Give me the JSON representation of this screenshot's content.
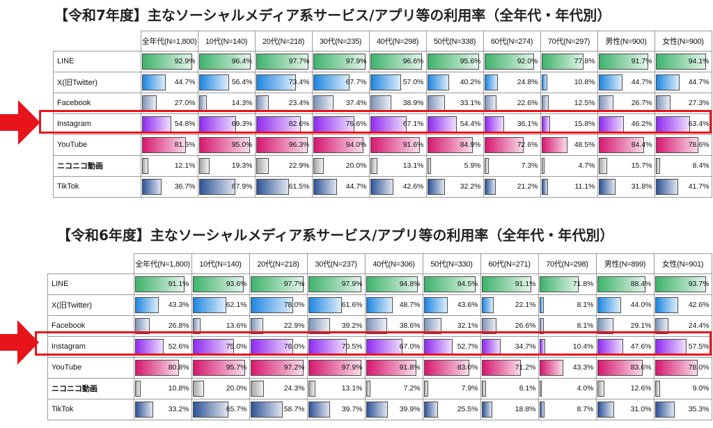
{
  "chart_data": [
    {
      "type": "table",
      "title": "【令和7年度】主なソーシャルメディア系サービス/アプリ等の利用率（全年代・年代別）",
      "columns": [
        "全年代(N=1,800)",
        "10代(N=140)",
        "20代(N=218)",
        "30代(N=235)",
        "40代(N=298)",
        "50代(N=338)",
        "60代(N=274)",
        "70代(N=297)",
        "男性(N=900)",
        "女性(N=900)"
      ],
      "rows": [
        {
          "name": "LINE",
          "color": "#3fb36b",
          "values": [
            92.9,
            96.4,
            97.7,
            97.9,
            96.6,
            95.6,
            92.0,
            77.8,
            91.7,
            94.1
          ]
        },
        {
          "name": "X(旧Twitter)",
          "color": "#1f86e0",
          "values": [
            44.7,
            56.4,
            73.4,
            67.7,
            57.0,
            40.2,
            24.8,
            10.8,
            44.7,
            44.7
          ]
        },
        {
          "name": "Facebook",
          "color": "#7e94b8",
          "values": [
            27.0,
            14.3,
            23.4,
            37.4,
            38.9,
            33.1,
            22.6,
            12.5,
            26.7,
            27.3
          ]
        },
        {
          "name": "Instagram",
          "color": "#8f2cf0",
          "values": [
            54.8,
            69.3,
            82.6,
            76.6,
            67.1,
            54.4,
            36.1,
            15.8,
            46.2,
            63.4
          ]
        },
        {
          "name": "YouTube",
          "color": "#d6186f",
          "values": [
            81.5,
            95.0,
            96.3,
            94.0,
            91.6,
            84.9,
            72.6,
            48.5,
            84.4,
            78.6
          ]
        },
        {
          "name": "ニコニコ動画",
          "color": "#a5a5a5",
          "values": [
            12.1,
            19.3,
            22.9,
            20.0,
            13.1,
            5.9,
            7.3,
            4.7,
            15.7,
            8.4
          ]
        },
        {
          "name": "TikTok",
          "color": "#2f5497",
          "values": [
            36.7,
            67.9,
            61.5,
            44.7,
            42.6,
            32.2,
            21.2,
            11.1,
            31.8,
            41.7
          ]
        }
      ],
      "value_labels": [
        [
          "92.9%",
          "96.4%",
          "97.7%",
          "97.9%",
          "96.6%",
          "95.6%",
          "92.0%",
          "77.8%",
          "91.7%",
          "94.1%"
        ],
        [
          "44.7%",
          "56.4%",
          "73.4%",
          "67.7%",
          "57.0%",
          "40.2%",
          "24.8%",
          "10.8%",
          "44.7%",
          "44.7%"
        ],
        [
          "27.0%",
          "14.3%",
          "23.4%",
          "37.4%",
          "38.9%",
          "33.1%",
          "22.6%",
          "12.5%",
          "26.7%",
          "27.3%"
        ],
        [
          "54.8%",
          "69.3%",
          "82.6%",
          "76.6%",
          "67.1%",
          "54.4%",
          "36.1%",
          "15.8%",
          "46.2%",
          "63.4%"
        ],
        [
          "81.5%",
          "95.0%",
          "96.3%",
          "94.0%",
          "91.6%",
          "84.9%",
          "72.6%",
          "48.5%",
          "84.4%",
          "78.6%"
        ],
        [
          "12.1%",
          "19.3%",
          "22.9%",
          "20.0%",
          "13.1%",
          "5.9%",
          "7.3%",
          "4.7%",
          "15.7%",
          "8.4%"
        ],
        [
          "36.7%",
          "67.9%",
          "61.5%",
          "44.7%",
          "42.6%",
          "32.2%",
          "21.2%",
          "11.1%",
          "31.8%",
          "41.7%"
        ]
      ],
      "highlighted_row": "Instagram",
      "highlight_color": "#e8141b"
    },
    {
      "type": "table",
      "title": "【令和6年度】主なソーシャルメディア系サービス/アプリ等の利用率（全年代・年代別）",
      "columns": [
        "全年代(N=1,800)",
        "10代(N=140)",
        "20代(N=218)",
        "30代(N=237)",
        "40代(N=306)",
        "50代(N=330)",
        "60代(N=271)",
        "70代(N=298)",
        "男性(N=899)",
        "女性(N=901)"
      ],
      "rows": [
        {
          "name": "LINE",
          "color": "#3fb36b",
          "values": [
            91.1,
            93.6,
            97.7,
            97.9,
            94.8,
            94.5,
            91.1,
            71.8,
            88.4,
            93.7
          ]
        },
        {
          "name": "X(旧Twitter)",
          "color": "#1f86e0",
          "values": [
            43.3,
            62.1,
            78.0,
            61.6,
            48.7,
            43.6,
            22.1,
            8.1,
            44.0,
            42.6
          ]
        },
        {
          "name": "Facebook",
          "color": "#7e94b8",
          "values": [
            26.8,
            13.6,
            22.9,
            39.2,
            38.6,
            32.1,
            26.6,
            8.1,
            29.1,
            24.4
          ]
        },
        {
          "name": "Instagram",
          "color": "#8f2cf0",
          "values": [
            52.6,
            75.0,
            78.0,
            70.5,
            67.0,
            52.7,
            34.7,
            10.4,
            47.6,
            57.5
          ]
        },
        {
          "name": "YouTube",
          "color": "#d6186f",
          "values": [
            80.8,
            95.7,
            97.2,
            97.9,
            91.8,
            83.0,
            71.2,
            43.3,
            83.6,
            78.0
          ]
        },
        {
          "name": "ニコニコ動画",
          "color": "#a5a5a5",
          "values": [
            10.8,
            20.0,
            24.3,
            13.1,
            7.2,
            7.9,
            8.1,
            4.0,
            12.6,
            9.0
          ]
        },
        {
          "name": "TikTok",
          "color": "#2f5497",
          "values": [
            33.2,
            65.7,
            58.7,
            39.7,
            39.9,
            25.5,
            18.8,
            8.7,
            31.0,
            35.3
          ]
        }
      ],
      "value_labels": [
        [
          "91.1%",
          "93.6%",
          "97.7%",
          "97.9%",
          "94.8%",
          "94.5%",
          "91.1%",
          "71.8%",
          "88.4%",
          "93.7%"
        ],
        [
          "43.3%",
          "62.1%",
          "78.0%",
          "61.6%",
          "48.7%",
          "43.6%",
          "22.1%",
          "8.1%",
          "44.0%",
          "42.6%"
        ],
        [
          "26.8%",
          "13.6%",
          "22.9%",
          "39.2%",
          "38.6%",
          "32.1%",
          "26.6%",
          "8.1%",
          "29.1%",
          "24.4%"
        ],
        [
          "52.6%",
          "75.0%",
          "78.0%",
          "70.5%",
          "67.0%",
          "52.7%",
          "34.7%",
          "10.4%",
          "47.6%",
          "57.5%"
        ],
        [
          "80.8%",
          "95.7%",
          "97.2%",
          "97.9%",
          "91.8%",
          "83.0%",
          "71.2%",
          "43.3%",
          "83.6%",
          "78.0%"
        ],
        [
          "10.8%",
          "20.0%",
          "24.3%",
          "13.1%",
          "7.2%",
          "7.9%",
          "8.1%",
          "4.0%",
          "12.6%",
          "9.0%"
        ],
        [
          "33.2%",
          "65.7%",
          "58.7%",
          "39.7%",
          "39.9%",
          "25.5%",
          "18.8%",
          "8.7%",
          "31.0%",
          "35.3%"
        ]
      ],
      "highlighted_row": "Instagram",
      "highlight_color": "#e8141b"
    }
  ]
}
